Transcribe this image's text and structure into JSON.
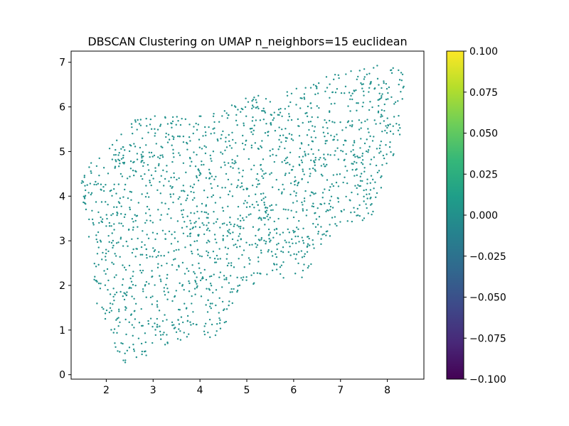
{
  "chart_data": {
    "type": "scatter",
    "title": "DBSCAN Clustering on UMAP n_neighbors=15 euclidean",
    "xlabel": "",
    "ylabel": "",
    "xlim": [
      1.25,
      8.78
    ],
    "ylim": [
      -0.1,
      7.25
    ],
    "x_ticks": [
      2,
      3,
      4,
      5,
      6,
      7,
      8
    ],
    "y_ticks": [
      0,
      1,
      2,
      3,
      4,
      5,
      6,
      7
    ],
    "point_color": "#21918c",
    "point_count": 1800,
    "all_labels_value": 0.0,
    "colorbar": {
      "colormap": "viridis",
      "range": [
        -0.1,
        0.1
      ],
      "ticks": [
        "0.100",
        "0.075",
        "0.050",
        "0.025",
        "0.000",
        "−0.025",
        "−0.050",
        "−0.075",
        "−0.100"
      ],
      "colors": [
        "#440154",
        "#482878",
        "#3e4989",
        "#31688e",
        "#26828e",
        "#1f9e89",
        "#35b779",
        "#6ece58",
        "#b5de2b",
        "#fde725"
      ]
    },
    "region_boundary": [
      [
        1.4,
        4.2
      ],
      [
        1.6,
        4.7
      ],
      [
        2.0,
        5.0
      ],
      [
        2.3,
        5.4
      ],
      [
        2.6,
        5.7
      ],
      [
        3.0,
        5.8
      ],
      [
        3.6,
        5.8
      ],
      [
        4.4,
        5.9
      ],
      [
        5.0,
        6.3
      ],
      [
        5.5,
        6.2
      ],
      [
        6.0,
        6.4
      ],
      [
        6.6,
        6.7
      ],
      [
        7.2,
        6.8
      ],
      [
        7.7,
        6.95
      ],
      [
        8.1,
        6.95
      ],
      [
        8.35,
        6.9
      ],
      [
        8.4,
        6.5
      ],
      [
        8.3,
        5.5
      ],
      [
        8.2,
        5.1
      ],
      [
        7.9,
        4.3
      ],
      [
        7.7,
        3.5
      ],
      [
        7.3,
        3.4
      ],
      [
        6.8,
        3.1
      ],
      [
        6.5,
        2.6
      ],
      [
        6.3,
        2.1
      ],
      [
        6.0,
        2.2
      ],
      [
        5.5,
        2.1
      ],
      [
        5.0,
        2.0
      ],
      [
        4.7,
        1.6
      ],
      [
        4.5,
        1.0
      ],
      [
        4.3,
        0.8
      ],
      [
        4.0,
        0.9
      ],
      [
        3.7,
        0.75
      ],
      [
        3.3,
        0.7
      ],
      [
        3.0,
        0.45
      ],
      [
        2.7,
        0.4
      ],
      [
        2.5,
        0.2
      ],
      [
        2.3,
        0.25
      ],
      [
        2.2,
        0.6
      ],
      [
        2.0,
        1.2
      ],
      [
        1.8,
        1.6
      ],
      [
        1.7,
        2.5
      ],
      [
        1.6,
        3.3
      ],
      [
        1.5,
        3.9
      ]
    ]
  }
}
